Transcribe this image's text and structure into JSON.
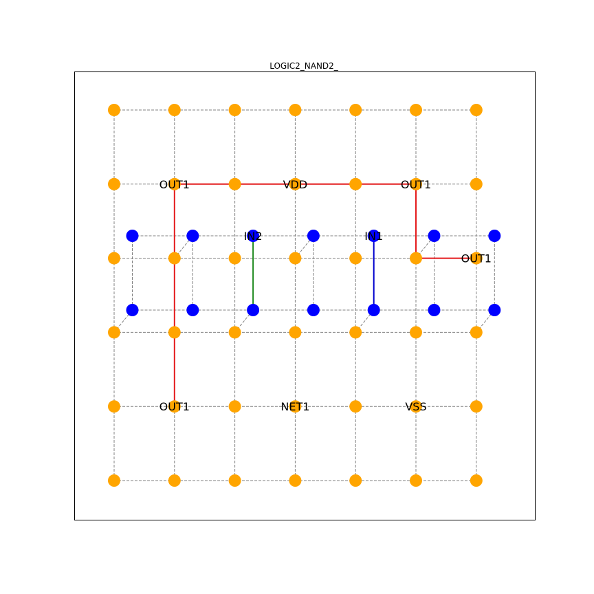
{
  "title": "LOGIC2_NAND2_",
  "colors": {
    "lower_node": "#ffa500",
    "upper_node": "#0000ff",
    "grid_line": "#808080",
    "frame": "#000000",
    "wire_red": "#e41a1c",
    "wire_green": "#228b22",
    "wire_blue": "#0000cd"
  },
  "lower_grid": {
    "cols": 7,
    "rows": 6
  },
  "upper_grid": {
    "cols": 7,
    "rows": 2
  },
  "connectors": [
    [
      0,
      3
    ],
    [
      1,
      2
    ],
    [
      2,
      3
    ],
    [
      3,
      2
    ],
    [
      4,
      3
    ],
    [
      5,
      2
    ],
    [
      6,
      3
    ]
  ],
  "wires": [
    {
      "color": "wire_red",
      "points": [
        [
          1,
          1
        ],
        [
          5,
          1
        ]
      ]
    },
    {
      "color": "wire_red",
      "points": [
        [
          5,
          1
        ],
        [
          5,
          2
        ]
      ]
    },
    {
      "color": "wire_red",
      "points": [
        [
          5,
          2
        ],
        [
          6,
          2
        ]
      ]
    },
    {
      "color": "wire_red",
      "points": [
        [
          1,
          1
        ],
        [
          1,
          4
        ]
      ]
    },
    {
      "color": "wire_green",
      "layer": "upper",
      "points": [
        [
          2,
          0
        ],
        [
          2,
          1
        ]
      ]
    },
    {
      "color": "wire_blue",
      "layer": "upper",
      "points": [
        [
          4,
          0
        ],
        [
          4,
          1
        ]
      ]
    }
  ],
  "labels": [
    {
      "text": "OUT1",
      "col": 1,
      "row": 1,
      "layer": "lower"
    },
    {
      "text": "VDD",
      "col": 3,
      "row": 1,
      "layer": "lower"
    },
    {
      "text": "OUT1",
      "col": 5,
      "row": 1,
      "layer": "lower"
    },
    {
      "text": "IN2",
      "col": 2,
      "row": 0,
      "layer": "upper"
    },
    {
      "text": "IN1",
      "col": 4,
      "row": 0,
      "layer": "upper"
    },
    {
      "text": "OUT1",
      "col": 6,
      "row": 2,
      "layer": "lower"
    },
    {
      "text": "OUT1",
      "col": 1,
      "row": 4,
      "layer": "lower"
    },
    {
      "text": "NET1",
      "col": 3,
      "row": 4,
      "layer": "lower"
    },
    {
      "text": "VSS",
      "col": 5,
      "row": 4,
      "layer": "lower"
    }
  ]
}
